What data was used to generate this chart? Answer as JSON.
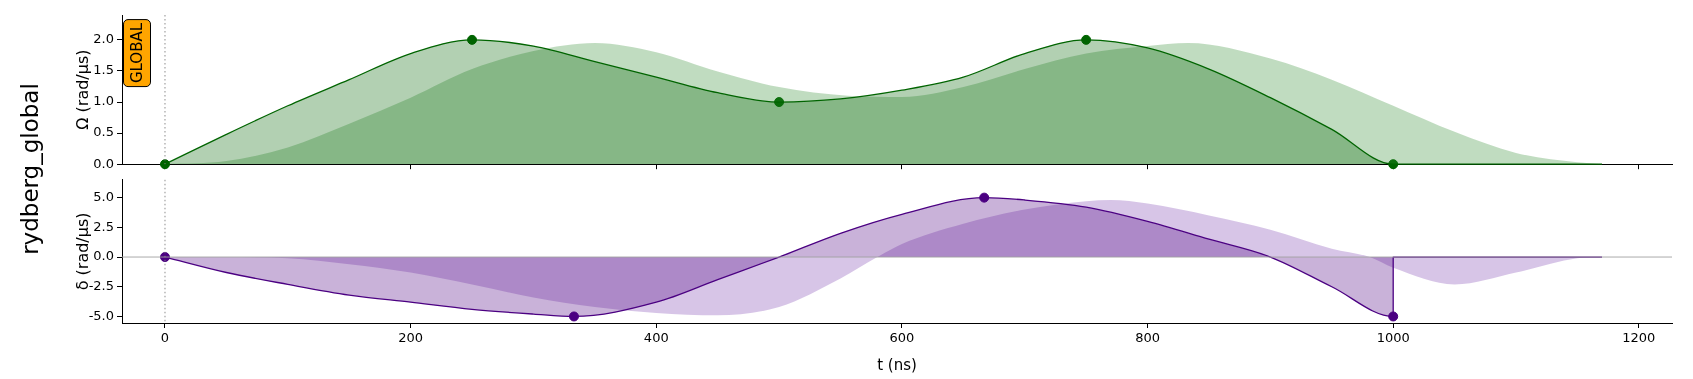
{
  "chart_data": [
    {
      "type": "area",
      "title": "rydberg_global",
      "ylabel": "Ω (rad/μs)",
      "annotations": [
        "GLOBAL"
      ],
      "xlim": [
        -35,
        1227
      ],
      "xticks": [
        0,
        200,
        400,
        600,
        800,
        1000,
        1200
      ],
      "ylim": [
        0,
        2.4
      ],
      "yticks": [
        {
          "value": 0,
          "label": "0.0"
        },
        {
          "value": 0.5,
          "label": "0.5"
        },
        {
          "value": 1,
          "label": "1.0"
        },
        {
          "value": 1.5,
          "label": "1.5"
        },
        {
          "value": 2,
          "label": "2.0"
        }
      ],
      "tick_labels": "y",
      "grid": false,
      "legend": false,
      "ref_lines": [
        {
          "axis": "x",
          "value": 0,
          "color": "#808080",
          "line_style": "dotted"
        }
      ],
      "series": [
        {
          "color": "#006400",
          "line_style": "solid",
          "marker": "none",
          "x": [
            0,
            50,
            100,
            150,
            200,
            250,
            300,
            350,
            400,
            450,
            500,
            550,
            600,
            650,
            700,
            750,
            800,
            850,
            900,
            950,
            1000,
            1170
          ],
          "values": [
            0,
            0.48,
            0.94,
            1.36,
            1.78,
            2.0,
            1.9,
            1.65,
            1.4,
            1.15,
            1.0,
            1.05,
            1.19,
            1.4,
            1.78,
            2.0,
            1.87,
            1.53,
            1.07,
            0.56,
            0,
            0
          ]
        },
        {
          "color": "#2e8b2e",
          "marker": "none",
          "x": [
            0,
            50,
            100,
            150,
            200,
            250,
            300,
            350,
            400,
            450,
            500,
            556,
            600,
            650,
            700,
            750,
            800,
            833,
            900,
            950,
            1000,
            1050,
            1100,
            1150,
            1170
          ],
          "values": [
            0,
            0.05,
            0.27,
            0.65,
            1.07,
            1.53,
            1.82,
            1.95,
            1.8,
            1.49,
            1.24,
            1.1,
            1.08,
            1.24,
            1.53,
            1.78,
            1.9,
            1.95,
            1.7,
            1.36,
            0.94,
            0.52,
            0.18,
            0.03,
            0
          ]
        },
        {
          "type": "scatter",
          "color": "#006400",
          "marker": "circle",
          "x": [
            0,
            250,
            500,
            750,
            1000
          ],
          "values": [
            0,
            2.0,
            1.0,
            2.0,
            0
          ]
        }
      ]
    },
    {
      "type": "area",
      "xlabel": "t (ns)",
      "ylabel": "δ (rad/μs)",
      "xlim": [
        -35,
        1227
      ],
      "xticks": [
        0,
        200,
        400,
        600,
        800,
        1000,
        1200
      ],
      "ylim": [
        -5.55,
        6.5
      ],
      "yticks": [
        {
          "value": -5,
          "label": "-5.0"
        },
        {
          "value": -2.5,
          "label": "-2.5"
        },
        {
          "value": 0,
          "label": "0.0"
        },
        {
          "value": 2.5,
          "label": "2.5"
        },
        {
          "value": 5,
          "label": "5.0"
        }
      ],
      "grid": false,
      "legend": false,
      "ref_lines": [
        {
          "axis": "x",
          "value": 0,
          "color": "#808080",
          "line_style": "dotted"
        },
        {
          "axis": "y",
          "value": 0,
          "color": "#a0a0a0",
          "line_style": "solid"
        }
      ],
      "series": [
        {
          "color": "#4b0082",
          "line_style": "solid",
          "marker": "none",
          "x": [
            0,
            50,
            100,
            150,
            200,
            250,
            300,
            333,
            400,
            450,
            500,
            550,
            600,
            667,
            700,
            750,
            800,
            850,
            900,
            950,
            1000,
            1000,
            1170
          ],
          "values": [
            0,
            -1.3,
            -2.3,
            -3.2,
            -3.8,
            -4.4,
            -4.8,
            -5.0,
            -3.8,
            -1.9,
            0,
            2.0,
            3.6,
            5.0,
            4.8,
            4.2,
            3.0,
            1.5,
            0,
            -2.5,
            -5.0,
            0,
            0
          ]
        },
        {
          "color": "#7a3fb0",
          "marker": "none",
          "x": [
            0,
            50,
            100,
            150,
            200,
            250,
            300,
            350,
            400,
            450,
            500,
            550,
            580,
            600,
            650,
            700,
            750,
            770,
            800,
            850,
            900,
            950,
            981,
            1000,
            1050,
            1100,
            1150,
            1170
          ],
          "values": [
            0,
            0,
            -0.1,
            -0.6,
            -1.3,
            -2.3,
            -3.4,
            -4.2,
            -4.7,
            -4.9,
            -4.2,
            -1.8,
            0,
            1.1,
            2.8,
            4.0,
            4.7,
            4.8,
            4.5,
            3.5,
            2.3,
            0.7,
            0,
            -0.9,
            -2.3,
            -1.3,
            -0.1,
            0
          ]
        },
        {
          "type": "scatter",
          "color": "#4b0082",
          "marker": "circle",
          "x": [
            0,
            333,
            667,
            1000
          ],
          "values": [
            0,
            -5.0,
            5.0,
            -5.0
          ]
        }
      ]
    }
  ]
}
